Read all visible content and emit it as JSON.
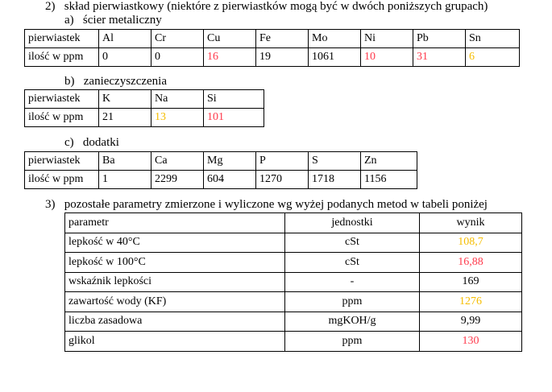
{
  "section2": {
    "num": "2)",
    "title": "skład pierwiastkowy (niektóre z pierwiastków mogą być w dwóch poniższych grupach)"
  },
  "colors": {
    "red": "#ff3a4c",
    "yellow": "#f5bd00"
  },
  "a": {
    "label": "a)",
    "title": "ścier metaliczny",
    "row_label1": "pierwiastek",
    "row_label2": "ilość w ppm",
    "cells": [
      {
        "el": "Al",
        "v": "0",
        "c": ""
      },
      {
        "el": "Cr",
        "v": "0",
        "c": ""
      },
      {
        "el": "Cu",
        "v": "16",
        "c": "red"
      },
      {
        "el": "Fe",
        "v": "19",
        "c": ""
      },
      {
        "el": "Mo",
        "v": "1061",
        "c": ""
      },
      {
        "el": "Ni",
        "v": "10",
        "c": "red"
      },
      {
        "el": "Pb",
        "v": "31",
        "c": "red"
      },
      {
        "el": "Sn",
        "v": "6",
        "c": "yel"
      }
    ]
  },
  "b": {
    "label": "b)",
    "title": "zanieczyszczenia",
    "row_label1": "pierwiastek",
    "row_label2": "ilość w ppm",
    "cells": [
      {
        "el": "K",
        "v": "21",
        "c": ""
      },
      {
        "el": "Na",
        "v": "13",
        "c": "yel"
      },
      {
        "el": "Si",
        "v": "101",
        "c": "red"
      }
    ]
  },
  "c": {
    "label": "c)",
    "title": "dodatki",
    "row_label1": "pierwiastek",
    "row_label2": "ilość w ppm",
    "cells": [
      {
        "el": "Ba",
        "v": "1",
        "c": ""
      },
      {
        "el": "Ca",
        "v": "2299",
        "c": ""
      },
      {
        "el": "Mg",
        "v": "604",
        "c": ""
      },
      {
        "el": "P",
        "v": "1270",
        "c": ""
      },
      {
        "el": "S",
        "v": "1718",
        "c": ""
      },
      {
        "el": "Zn",
        "v": "1156",
        "c": ""
      }
    ]
  },
  "section3": {
    "num": "3)",
    "title": "pozostałe parametry zmierzone i wyliczone wg wyżej podanych metod w tabeli poniżej",
    "headers": [
      "parametr",
      "jednostki",
      "wynik"
    ],
    "rows": [
      [
        "lepkość w 40°C",
        "cSt",
        "108,7",
        "yel"
      ],
      [
        "lepkość w 100°C",
        "cSt",
        "16,88",
        "red"
      ],
      [
        "wskaźnik lepkości",
        "-",
        "169",
        ""
      ],
      [
        "zawartość wody (KF)",
        "ppm",
        "1276",
        "yel"
      ],
      [
        "liczba zasadowa",
        "mgKOH/g",
        "9,99",
        ""
      ],
      [
        "glikol",
        "ppm",
        "130",
        "red"
      ]
    ]
  }
}
